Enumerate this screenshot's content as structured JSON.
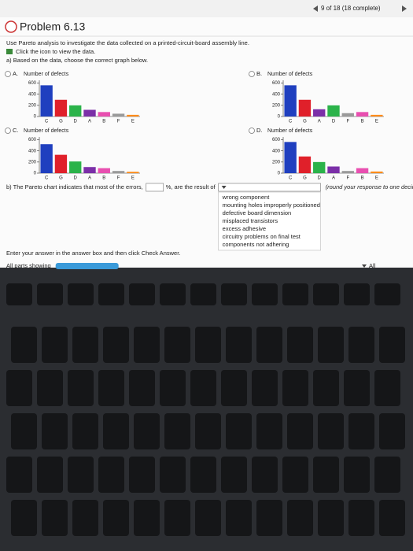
{
  "header": {
    "progress": "9 of 18 (18 complete)"
  },
  "problem": {
    "title": "Problem 6.13",
    "intro": "Use Pareto analysis to investigate the data collected on a printed-circuit-board assembly line.",
    "data_link": "Click the icon to view the data.",
    "part_a": "a) Based on the data, choose the correct graph below."
  },
  "options": [
    {
      "label": "A.",
      "chart": {
        "type": "bar",
        "y_label": "Number of defects",
        "categories": [
          "C",
          "G",
          "D",
          "A",
          "B",
          "F",
          "E"
        ],
        "values": [
          560,
          300,
          200,
          120,
          80,
          50,
          30
        ],
        "colors": [
          "#1f3fbf",
          "#e0202a",
          "#2bb34a",
          "#7b2fa8",
          "#e84fb0",
          "#9a9a9a",
          "#ff8c1a"
        ],
        "ylim": [
          0,
          650
        ],
        "yticks": [
          0,
          200,
          400,
          600
        ]
      }
    },
    {
      "label": "B.",
      "chart": {
        "type": "bar",
        "y_label": "Number of defects",
        "categories": [
          "C",
          "G",
          "A",
          "D",
          "F",
          "B",
          "E"
        ],
        "values": [
          560,
          300,
          130,
          200,
          60,
          80,
          30
        ],
        "colors": [
          "#1f3fbf",
          "#e0202a",
          "#7b2fa8",
          "#2bb34a",
          "#9a9a9a",
          "#e84fb0",
          "#ff8c1a"
        ],
        "ylim": [
          0,
          650
        ],
        "yticks": [
          0,
          200,
          400,
          600
        ]
      }
    },
    {
      "label": "C.",
      "chart": {
        "type": "bar",
        "y_label": "Number of defects",
        "categories": [
          "C",
          "G",
          "D",
          "A",
          "B",
          "F",
          "E"
        ],
        "values": [
          520,
          330,
          210,
          110,
          90,
          40,
          25
        ],
        "colors": [
          "#1f3fbf",
          "#e0202a",
          "#2bb34a",
          "#7b2fa8",
          "#e84fb0",
          "#9a9a9a",
          "#ff8c1a"
        ],
        "ylim": [
          0,
          650
        ],
        "yticks": [
          0,
          200,
          400,
          600
        ]
      }
    },
    {
      "label": "D.",
      "chart": {
        "type": "bar",
        "y_label": "Number of defects",
        "categories": [
          "C",
          "G",
          "D",
          "A",
          "F",
          "B",
          "E"
        ],
        "values": [
          560,
          300,
          200,
          120,
          40,
          90,
          30
        ],
        "colors": [
          "#1f3fbf",
          "#e0202a",
          "#2bb34a",
          "#7b2fa8",
          "#9a9a9a",
          "#e84fb0",
          "#ff8c1a"
        ],
        "ylim": [
          0,
          650
        ],
        "yticks": [
          0,
          200,
          400,
          600
        ]
      }
    }
  ],
  "part_b": {
    "before": "b) The Pareto chart indicates that most of the errors,",
    "after": "%, are the result of",
    "note": "(round your response to one decimal place).",
    "dropdown": [
      "wrong component",
      "mounting holes improperly positioned",
      "defective board dimension",
      "misplaced transistors",
      "excess adhesive",
      "circuitry problems on final test",
      "components not adhering"
    ]
  },
  "footer": {
    "instruction": "Enter your answer in the answer box and then click Check Answer.",
    "parts": "All parts showing",
    "all": "All"
  }
}
